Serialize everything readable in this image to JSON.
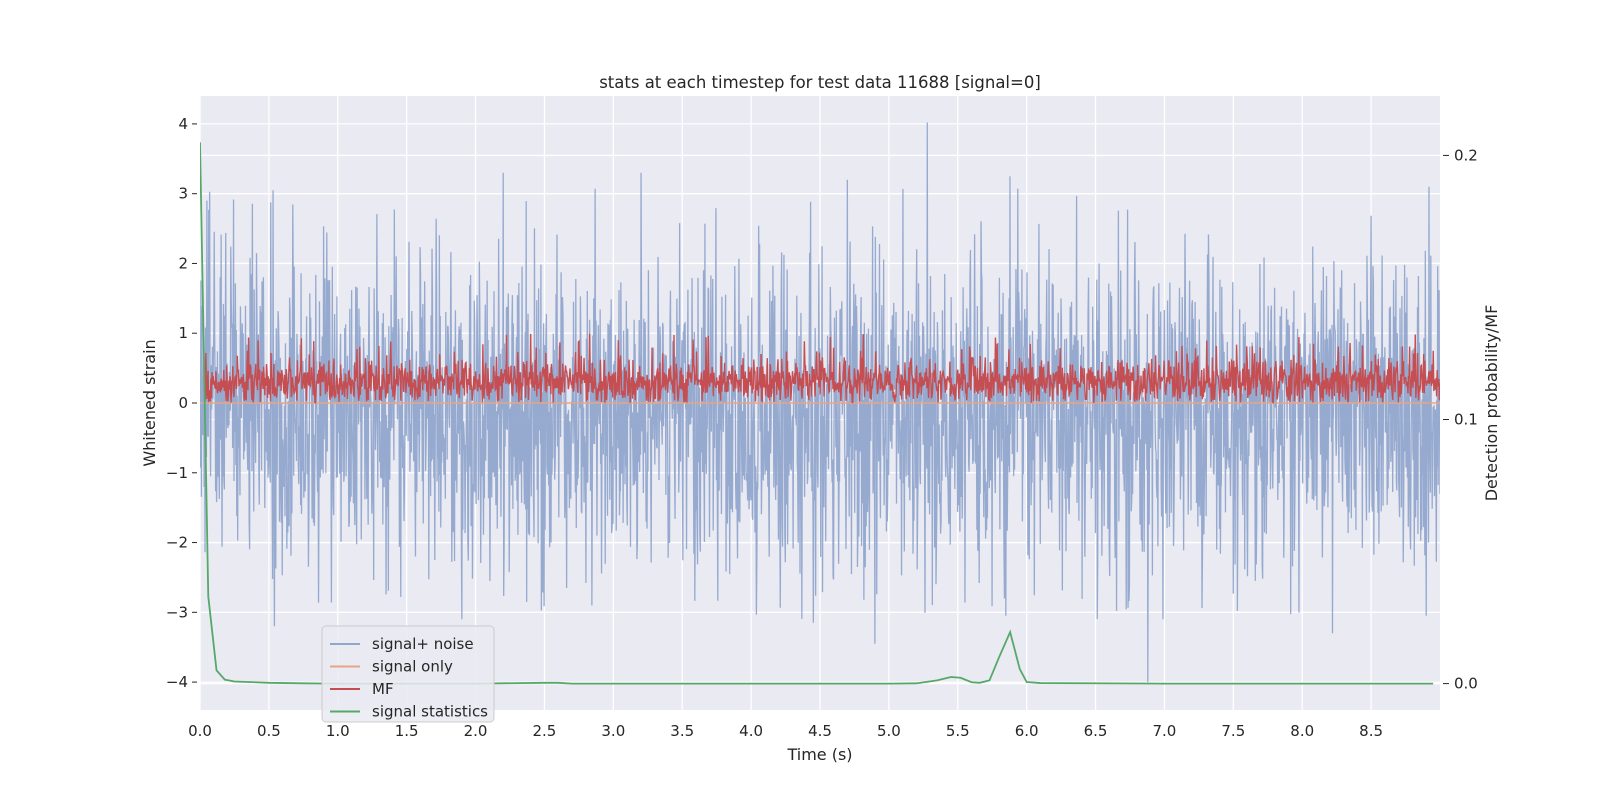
{
  "chart_data": {
    "type": "line",
    "title": "stats at each timestep for test data 11688 [signal=0]",
    "xlabel": "Time (s)",
    "ylabel": "Whitened strain",
    "ylabel_right": "Detection probability/MF",
    "xlim": [
      0.0,
      9.0
    ],
    "ylim": [
      -4.4,
      4.4
    ],
    "ylim_right": [
      -0.01,
      0.2225
    ],
    "xticks": [
      "0.0",
      "0.5",
      "1.0",
      "1.5",
      "2.0",
      "2.5",
      "3.0",
      "3.5",
      "4.0",
      "4.5",
      "5.0",
      "5.5",
      "6.0",
      "6.5",
      "7.0",
      "7.5",
      "8.0",
      "8.5"
    ],
    "yticks": [
      4,
      3,
      2,
      1,
      0,
      -1,
      -2,
      -3,
      -4
    ],
    "yticks_labels": [
      "4",
      "3",
      "2",
      "1",
      "0",
      "−1",
      "−2",
      "−3",
      "−4"
    ],
    "yticks_right": [
      0.2,
      0.1,
      0.0
    ],
    "yticks_right_labels": [
      "0.2",
      "0.1",
      "0.0"
    ],
    "grid": true,
    "legend_position": "lower-left",
    "series": [
      {
        "name": "signal+ noise",
        "axis": "left",
        "color": "#91a6cd",
        "description_points": "noisy whitened strain, roughly within [-3.2, 3.3] with peaks to 4.0 at t≈5.28 and -4.0 at t≈6.88",
        "peaks": [
          [
            0.05,
            2.9
          ],
          [
            0.53,
            3.05
          ],
          [
            0.54,
            -3.2
          ],
          [
            1.9,
            -3.1
          ],
          [
            2.2,
            3.3
          ],
          [
            3.2,
            3.3
          ],
          [
            4.7,
            3.2
          ],
          [
            4.45,
            -3.15
          ],
          [
            4.9,
            -3.45
          ],
          [
            5.28,
            4.02
          ],
          [
            5.85,
            -3.05
          ],
          [
            5.88,
            3.25
          ],
          [
            6.88,
            -4.0
          ],
          [
            6.99,
            -3.1
          ],
          [
            8.22,
            3.2
          ],
          [
            8.22,
            -3.3
          ],
          [
            8.92,
            3.1
          ],
          [
            8.9,
            -3.05
          ]
        ]
      },
      {
        "name": "signal only",
        "axis": "left",
        "color": "#e8a586",
        "values_note": "flat at zero",
        "x": [
          0.0,
          9.0
        ],
        "y": [
          0.0,
          0.0
        ]
      },
      {
        "name": "MF",
        "axis": "left",
        "color": "#c44e52",
        "description_points": "matched filter output fluctuating between about 0.0 and 1.0, mean about 0.3"
      },
      {
        "name": "signal statistics",
        "axis": "right",
        "color": "#55a868",
        "x": [
          0.0,
          0.06,
          0.12,
          0.18,
          0.25,
          0.5,
          0.75,
          1.0,
          2.0,
          2.5,
          2.6,
          2.7,
          3.0,
          4.0,
          5.0,
          5.2,
          5.35,
          5.45,
          5.52,
          5.6,
          5.66,
          5.73,
          5.8,
          5.88,
          5.95,
          6.0,
          6.1,
          7.0,
          8.0,
          8.95
        ],
        "y": [
          0.205,
          0.033,
          0.005,
          0.0015,
          0.0008,
          0.0003,
          0.0001,
          0.0,
          0.0,
          0.0003,
          0.0003,
          0.0,
          0.0,
          0.0,
          0.0,
          0.0001,
          0.0012,
          0.0025,
          0.0022,
          0.0005,
          0.0003,
          0.0012,
          0.01,
          0.0195,
          0.0055,
          0.0006,
          0.0002,
          0.0,
          0.0,
          0.0
        ]
      }
    ]
  }
}
